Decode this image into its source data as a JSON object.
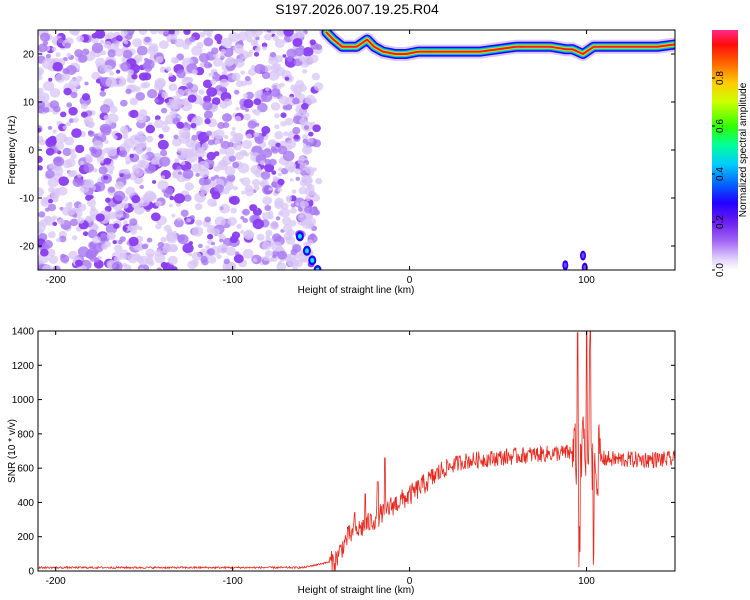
{
  "title": "S197.2026.007.19.25.R04",
  "colors": {
    "snr_line": "#e8281e",
    "noise_speckle": "#8a3cf0",
    "colormap": [
      "#ffffff",
      "#d9c4f7",
      "#7a2cf0",
      "#2300ff",
      "#0077ff",
      "#00e6ff",
      "#00ff66",
      "#7dff00",
      "#ffee00",
      "#ff8800",
      "#ff1a1a",
      "#ff3c8c"
    ]
  },
  "chart_data": [
    {
      "type": "heatmap",
      "xlabel": "Height of straight line (km)",
      "ylabel": "Frequency (Hz)",
      "xlim": [
        -210,
        150
      ],
      "ylim": [
        -25,
        25
      ],
      "x_ticks": [
        -200,
        -100,
        0,
        100
      ],
      "y_ticks": [
        -20,
        -10,
        0,
        10,
        20
      ],
      "colorbar": {
        "label": "Normalized spectral amplitude",
        "range": [
          0,
          1
        ],
        "ticks": [
          "0.0",
          "0.2",
          "0.4",
          "0.6",
          "0.8"
        ]
      },
      "ridge": {
        "description_points": [
          [
            -47,
            24.5
          ],
          [
            -43,
            23
          ],
          [
            -38,
            21.5
          ],
          [
            -30,
            21.5
          ],
          [
            -24,
            23
          ],
          [
            -20,
            21.5
          ],
          [
            -15,
            20.5
          ],
          [
            -8,
            20
          ],
          [
            -2,
            20
          ],
          [
            5,
            20.5
          ],
          [
            20,
            20.5
          ],
          [
            40,
            20.5
          ],
          [
            50,
            21
          ],
          [
            60,
            21.5
          ],
          [
            70,
            21.5
          ],
          [
            80,
            21.5
          ],
          [
            88,
            21
          ],
          [
            92,
            21
          ],
          [
            98,
            20
          ],
          [
            104,
            21.5
          ],
          [
            120,
            21.5
          ],
          [
            140,
            21.5
          ],
          [
            150,
            22
          ]
        ]
      },
      "noise_region_x": [
        -210,
        -50
      ]
    },
    {
      "type": "line",
      "xlabel": "Height of straight line (km)",
      "ylabel": "SNR (10 * v/v)",
      "xlim": [
        -210,
        150
      ],
      "ylim": [
        0,
        1400
      ],
      "x_ticks": [
        -200,
        -100,
        0,
        100
      ],
      "y_ticks": [
        0,
        200,
        400,
        600,
        800,
        1000,
        1200,
        1400
      ],
      "series": [
        {
          "trend": [
            [
              -210,
              20
            ],
            [
              -60,
              20
            ],
            [
              -42,
              60
            ],
            [
              -35,
              200
            ],
            [
              -20,
              300
            ],
            [
              -10,
              380
            ],
            [
              0,
              440
            ],
            [
              10,
              520
            ],
            [
              20,
              600
            ],
            [
              30,
              640
            ],
            [
              50,
              660
            ],
            [
              70,
              680
            ],
            [
              90,
              690
            ],
            [
              100,
              660
            ],
            [
              120,
              650
            ],
            [
              150,
              650
            ]
          ],
          "spikes": [
            [
              -31,
              340
            ],
            [
              -25,
              450
            ],
            [
              -18,
              520
            ],
            [
              -14,
              660
            ],
            [
              95,
              1390
            ],
            [
              96,
              80
            ],
            [
              98,
              920
            ],
            [
              100,
              1290
            ],
            [
              102,
              1400
            ],
            [
              104,
              100
            ],
            [
              106,
              420
            ]
          ]
        }
      ]
    }
  ]
}
